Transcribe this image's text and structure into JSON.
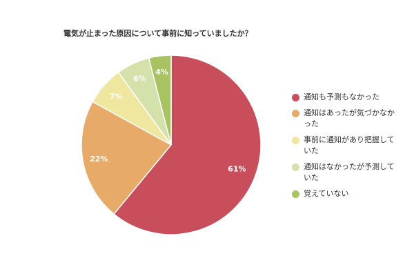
{
  "chart_data": {
    "type": "pie",
    "title": "電気が止まった原因について事前に知っていましたか？",
    "slices": [
      {
        "label_lines": [
          "通知も予測もなかった"
        ],
        "value": 61,
        "display": "61%",
        "color": "#c84e5c"
      },
      {
        "label_lines": [
          "通知はあったが気づかなか",
          "った"
        ],
        "value": 22,
        "display": "22%",
        "color": "#e7aa68"
      },
      {
        "label_lines": [
          "事前に通知があり把握して",
          "いた"
        ],
        "value": 7,
        "display": "7%",
        "color": "#efe6a0"
      },
      {
        "label_lines": [
          "通知はなかったが予測して",
          "いた"
        ],
        "value": 6,
        "display": "6%",
        "color": "#d5e1aa"
      },
      {
        "label_lines": [
          "覚えていない"
        ],
        "value": 4,
        "display": "4%",
        "color": "#a9c362"
      }
    ],
    "start": "12 o'clock",
    "direction": "clockwise",
    "legend_position": "right"
  }
}
